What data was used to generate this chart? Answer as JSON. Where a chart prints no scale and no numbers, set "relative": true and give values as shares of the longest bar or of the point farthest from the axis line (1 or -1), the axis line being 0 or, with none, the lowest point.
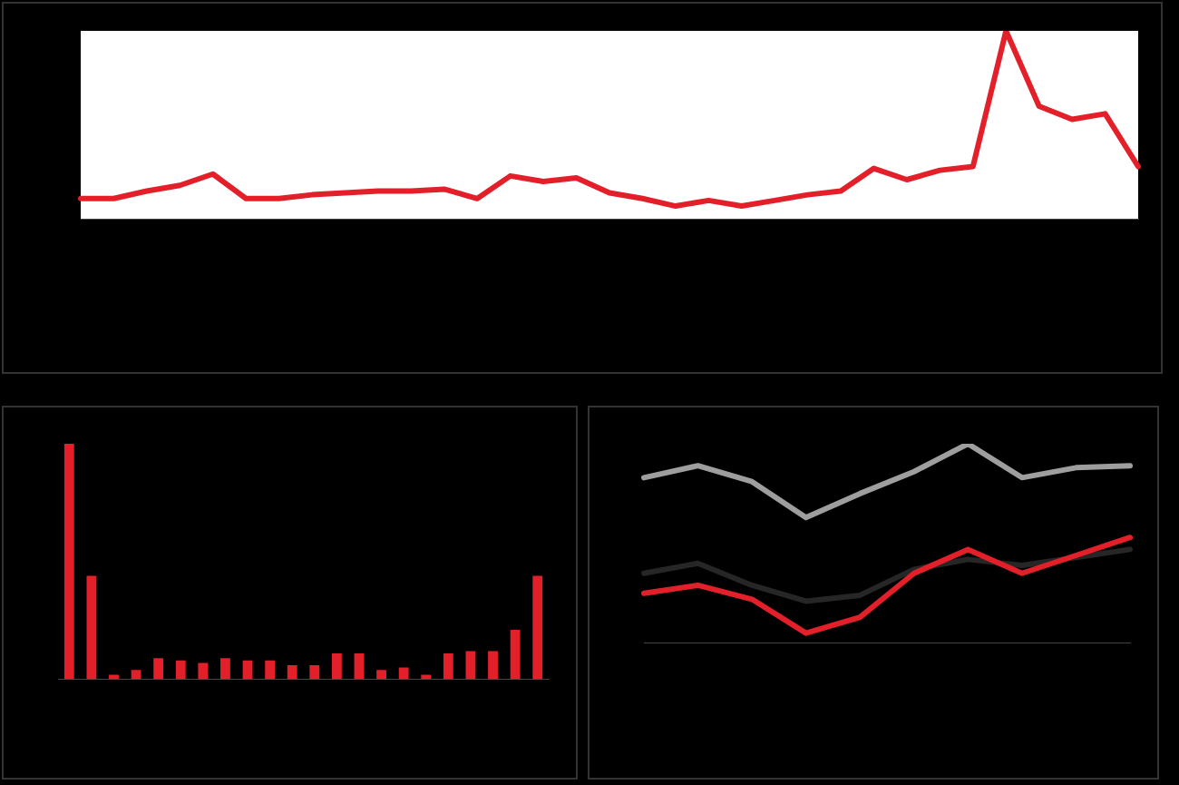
{
  "chart_data": [
    {
      "type": "line",
      "relative": true,
      "categories": [
        null,
        null,
        null,
        null,
        null,
        null,
        null,
        null,
        null,
        null,
        null,
        null,
        null,
        null,
        null,
        null,
        null,
        null,
        null,
        null,
        null,
        null,
        null,
        null,
        null,
        null,
        null,
        null,
        null,
        null,
        null,
        null,
        null
      ],
      "color": "#e3202a",
      "values": [
        0.11,
        0.11,
        0.15,
        0.18,
        0.24,
        0.11,
        0.11,
        0.13,
        0.14,
        0.15,
        0.15,
        0.16,
        0.11,
        0.23,
        0.2,
        0.22,
        0.14,
        0.11,
        0.07,
        0.1,
        0.07,
        0.1,
        0.13,
        0.15,
        0.27,
        0.21,
        0.26,
        0.28,
        1,
        0.6,
        0.53,
        0.56,
        0.28
      ]
    },
    {
      "type": "bar",
      "relative": true,
      "categories": [
        null,
        null,
        null,
        null,
        null,
        null,
        null,
        null,
        null,
        null,
        null,
        null,
        null,
        null,
        null,
        null,
        null,
        null,
        null,
        null,
        null,
        null
      ],
      "color": "#e3202a",
      "values": [
        1,
        0.44,
        0.02,
        0.04,
        0.09,
        0.08,
        0.07,
        0.09,
        0.08,
        0.08,
        0.06,
        0.06,
        0.11,
        0.11,
        0.04,
        0.05,
        0.02,
        0.11,
        0.12,
        0.12,
        0.21,
        0.44
      ]
    },
    {
      "type": "line",
      "relative": true,
      "categories": [
        null,
        null,
        null,
        null,
        null,
        null,
        null,
        null,
        null,
        null
      ],
      "series": [
        {
          "color": "#e3202a",
          "values": [
            0.25,
            0.29,
            0.22,
            0.05,
            0.13,
            0.35,
            0.47,
            0.35,
            0.44,
            0.53
          ]
        },
        {
          "color": "#262626",
          "values": [
            0.35,
            0.4,
            0.29,
            0.21,
            0.24,
            0.37,
            0.42,
            0.39,
            0.43,
            0.47
          ]
        },
        {
          "color": "#9e9e9e",
          "values": [
            0.83,
            0.89,
            0.81,
            0.63,
            0.75,
            0.86,
            1,
            0.83,
            0.88,
            0.89
          ]
        }
      ]
    }
  ]
}
